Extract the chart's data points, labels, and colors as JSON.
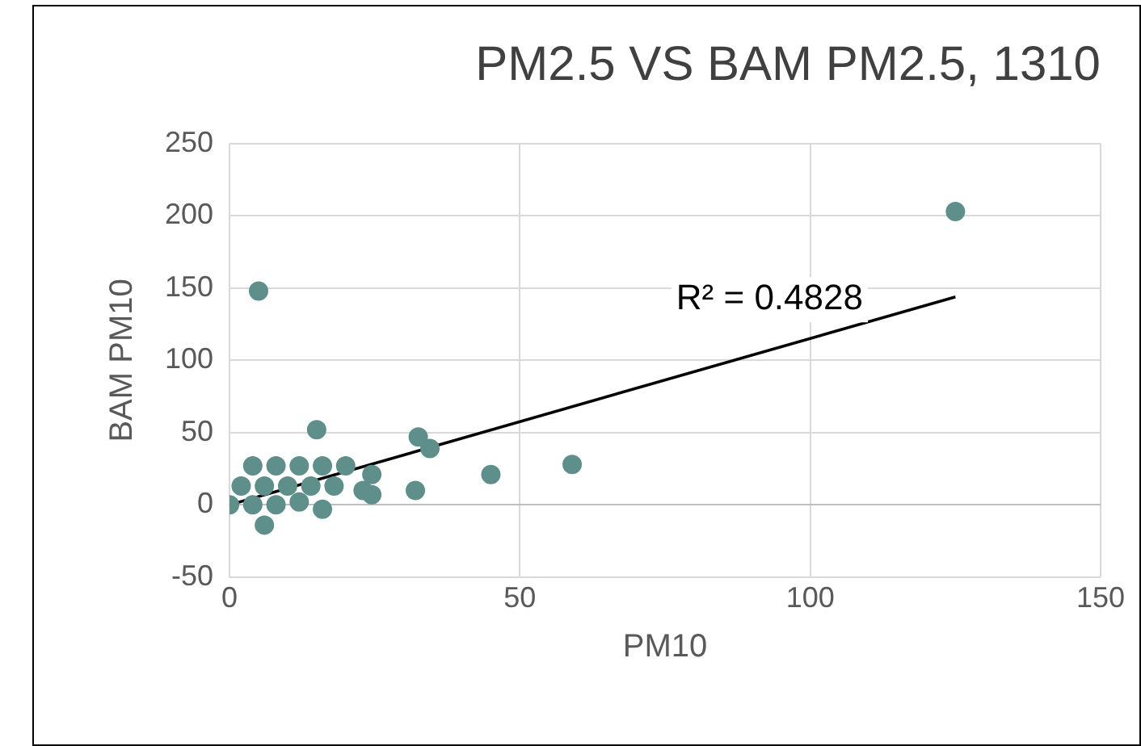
{
  "chart_data": {
    "type": "scatter",
    "title": "PM2.5 VS BAM PM2.5, 1310",
    "xlabel": "PM10",
    "ylabel": "BAM PM10",
    "xlim": [
      0,
      150
    ],
    "xticks": [
      0,
      50,
      100,
      150
    ],
    "ylim": [
      -50,
      250
    ],
    "yticks": [
      -50,
      0,
      50,
      100,
      150,
      200,
      250
    ],
    "grid": true,
    "legend": false,
    "marker": "circle",
    "annotations": [
      "R² = 0.4828"
    ],
    "series": [
      {
        "color": "#5f8f8a",
        "x": [
          125,
          5,
          15,
          32.5,
          34.5,
          45,
          59,
          32,
          23,
          24.5,
          24.5,
          6,
          16,
          0,
          4,
          8,
          12,
          2,
          6,
          10,
          14,
          18,
          4,
          8,
          12,
          16,
          20
        ],
        "values": [
          203,
          148,
          52,
          47,
          39,
          21,
          28,
          10,
          10,
          7,
          21,
          -14,
          -3,
          0,
          0,
          0,
          2,
          13,
          13,
          13,
          13,
          13,
          27,
          27,
          27,
          27,
          27
        ]
      },
      {
        "type": "line",
        "color": "#000000",
        "x": [
          0,
          125
        ],
        "values": [
          0,
          144
        ],
        "marker": "none"
      }
    ]
  }
}
